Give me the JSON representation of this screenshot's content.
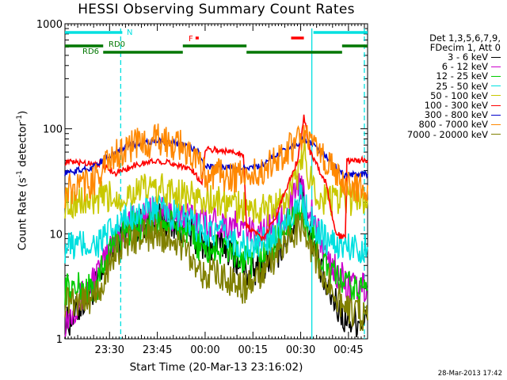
{
  "chart_data": {
    "type": "line",
    "title": "HESSI Observing Summary Count Rates",
    "xlabel": "Start Time (20-Mar-13 23:16:02)",
    "ylabel_main": "Count Rate (s",
    "ylabel_sup1": "-1",
    "ylabel_mid": " detector",
    "ylabel_sup2": "-1",
    "ylabel_end": ")",
    "y_scale": "log",
    "ylim": [
      1,
      1000
    ],
    "y_ticks": [
      {
        "value": 1,
        "label": "1"
      },
      {
        "value": 10,
        "label": "10"
      },
      {
        "value": 100,
        "label": "100"
      },
      {
        "value": 1000,
        "label": "1000"
      }
    ],
    "x_unit": "minutes after 23:16:02",
    "xlim": [
      0,
      95
    ],
    "x_ticks": [
      {
        "value": 14,
        "label": "23:30"
      },
      {
        "value": 29,
        "label": "23:45"
      },
      {
        "value": 44,
        "label": "00:00"
      },
      {
        "value": 59,
        "label": "00:15"
      },
      {
        "value": 74,
        "label": "00:30"
      },
      {
        "value": 89,
        "label": "00:45"
      }
    ],
    "legend": {
      "header": [
        "Det 1,3,5,6,7,9,",
        "FDecim 1, Att 0"
      ],
      "placement": "right"
    },
    "series": [
      {
        "name": "3 - 6 keV",
        "color": "#000000",
        "points": [
          [
            0,
            1.3
          ],
          [
            12,
            4
          ],
          [
            16,
            8
          ],
          [
            22,
            12
          ],
          [
            29,
            14
          ],
          [
            36,
            12
          ],
          [
            40,
            10
          ],
          [
            44,
            7
          ],
          [
            50,
            8
          ],
          [
            58,
            4
          ],
          [
            66,
            6
          ],
          [
            72,
            12
          ],
          [
            74,
            28
          ],
          [
            76,
            14
          ],
          [
            79,
            6
          ],
          [
            82,
            3
          ],
          [
            88,
            1.5
          ],
          [
            95,
            1.5
          ]
        ]
      },
      {
        "name": "6 - 12 keV",
        "color": "#cc00cc",
        "points": [
          [
            0,
            1.5
          ],
          [
            12,
            5
          ],
          [
            15,
            9
          ],
          [
            22,
            14
          ],
          [
            29,
            16
          ],
          [
            36,
            14
          ],
          [
            42,
            14
          ],
          [
            44,
            13
          ],
          [
            50,
            13
          ],
          [
            58,
            10
          ],
          [
            62,
            11
          ],
          [
            68,
            14
          ],
          [
            72,
            22
          ],
          [
            74,
            30
          ],
          [
            76,
            20
          ],
          [
            79,
            11
          ],
          [
            82,
            6
          ],
          [
            86,
            4
          ],
          [
            90,
            3
          ],
          [
            95,
            3
          ]
        ]
      },
      {
        "name": "12 - 25 keV",
        "color": "#00cc00",
        "points": [
          [
            0,
            3
          ],
          [
            10,
            3
          ],
          [
            12,
            5
          ],
          [
            16,
            9
          ],
          [
            22,
            12
          ],
          [
            29,
            13
          ],
          [
            36,
            11
          ],
          [
            40,
            9
          ],
          [
            44,
            7
          ],
          [
            52,
            7
          ],
          [
            58,
            5
          ],
          [
            64,
            7
          ],
          [
            70,
            12
          ],
          [
            74,
            18
          ],
          [
            76,
            12
          ],
          [
            80,
            6
          ],
          [
            84,
            4
          ],
          [
            90,
            3
          ],
          [
            95,
            3
          ]
        ]
      },
      {
        "name": "25 - 50 keV",
        "color": "#00e0e0",
        "points": [
          [
            0,
            7.5
          ],
          [
            10,
            8
          ],
          [
            14,
            10
          ],
          [
            22,
            16
          ],
          [
            29,
            17
          ],
          [
            36,
            14
          ],
          [
            40,
            12
          ],
          [
            44,
            11
          ],
          [
            52,
            9
          ],
          [
            58,
            7
          ],
          [
            64,
            9
          ],
          [
            70,
            14
          ],
          [
            74,
            22
          ],
          [
            76,
            16
          ],
          [
            80,
            10
          ],
          [
            84,
            8
          ],
          [
            88,
            7.5
          ],
          [
            95,
            7.5
          ]
        ]
      },
      {
        "name": "50 - 100 keV",
        "color": "#c8c800",
        "points": [
          [
            0,
            20
          ],
          [
            11,
            20
          ],
          [
            11,
            22
          ],
          [
            17,
            22
          ],
          [
            22,
            26
          ],
          [
            29,
            27
          ],
          [
            36,
            24
          ],
          [
            40,
            22
          ],
          [
            44,
            21
          ],
          [
            52,
            19
          ],
          [
            58,
            17
          ],
          [
            64,
            17
          ],
          [
            70,
            22
          ],
          [
            74,
            40
          ],
          [
            75,
            75
          ],
          [
            76,
            40
          ],
          [
            80,
            22
          ],
          [
            84,
            21
          ],
          [
            88,
            21
          ],
          [
            95,
            21
          ]
        ]
      },
      {
        "name": "100 - 300 keV",
        "color": "#ff0000",
        "points": [
          [
            0,
            48
          ],
          [
            11,
            47
          ],
          [
            16,
            38
          ],
          [
            22,
            45
          ],
          [
            29,
            50
          ],
          [
            36,
            45
          ],
          [
            40,
            40
          ],
          [
            43,
            30
          ],
          [
            44,
            65
          ],
          [
            56,
            58
          ],
          [
            57,
            12
          ],
          [
            62,
            9
          ],
          [
            66,
            14
          ],
          [
            70,
            30
          ],
          [
            73,
            50
          ],
          [
            75,
            130
          ],
          [
            77,
            60
          ],
          [
            82,
            30
          ],
          [
            85,
            10
          ],
          [
            88,
            9
          ],
          [
            88.5,
            50
          ],
          [
            95,
            50
          ]
        ]
      },
      {
        "name": "300 - 800 keV",
        "color": "#0000cc",
        "points": [
          [
            0,
            38
          ],
          [
            8,
            42
          ],
          [
            14,
            55
          ],
          [
            20,
            70
          ],
          [
            29,
            78
          ],
          [
            36,
            72
          ],
          [
            40,
            65
          ],
          [
            42,
            60
          ],
          [
            44,
            44
          ],
          [
            56,
            42
          ],
          [
            58,
            42
          ],
          [
            62,
            45
          ],
          [
            66,
            55
          ],
          [
            72,
            70
          ],
          [
            75,
            78
          ],
          [
            78,
            70
          ],
          [
            82,
            55
          ],
          [
            86,
            40
          ],
          [
            88,
            36
          ],
          [
            95,
            37
          ]
        ]
      },
      {
        "name": "800 - 7000 keV",
        "color": "#ff8800",
        "points": [
          [
            0,
            25
          ],
          [
            8,
            30
          ],
          [
            14,
            50
          ],
          [
            20,
            68
          ],
          [
            29,
            78
          ],
          [
            36,
            70
          ],
          [
            40,
            55
          ],
          [
            43,
            40
          ],
          [
            44,
            37
          ],
          [
            56,
            35
          ],
          [
            58,
            34
          ],
          [
            62,
            40
          ],
          [
            66,
            52
          ],
          [
            72,
            70
          ],
          [
            75,
            80
          ],
          [
            78,
            70
          ],
          [
            82,
            50
          ],
          [
            86,
            35
          ],
          [
            88,
            29
          ],
          [
            95,
            29
          ]
        ]
      },
      {
        "name": "7000 - 20000 keV",
        "color": "#808000",
        "points": [
          [
            0,
            2.3
          ],
          [
            10,
            2.5
          ],
          [
            12,
            3.5
          ],
          [
            16,
            7
          ],
          [
            22,
            9
          ],
          [
            29,
            10
          ],
          [
            36,
            8
          ],
          [
            40,
            6
          ],
          [
            44,
            4
          ],
          [
            50,
            4
          ],
          [
            56,
            3
          ],
          [
            62,
            4
          ],
          [
            66,
            6
          ],
          [
            70,
            9
          ],
          [
            74,
            12
          ],
          [
            76,
            9
          ],
          [
            80,
            5
          ],
          [
            84,
            3
          ],
          [
            88,
            2
          ],
          [
            95,
            1.5
          ]
        ]
      }
    ],
    "vertical_lines": [
      {
        "x": 17.5,
        "color": "#00e0e0",
        "style": "dashed"
      },
      {
        "x": 77.5,
        "color": "#00e0e0",
        "style": "solid"
      },
      {
        "x": 94,
        "color": "#00e0e0",
        "style": "dashed"
      }
    ],
    "status_bars": [
      {
        "label": "N",
        "color": "#00e0e0",
        "segments": [
          [
            0,
            18
          ],
          [
            78,
            95
          ]
        ]
      },
      {
        "label": "F",
        "color": "#ff0000",
        "segments": [
          [
            41,
            42
          ],
          [
            71,
            75
          ]
        ]
      },
      {
        "label": "RD0",
        "color": "#007700",
        "segments": [
          [
            0,
            12
          ],
          [
            37,
            57
          ],
          [
            87,
            95
          ]
        ]
      },
      {
        "label": "RD6",
        "color": "#007700",
        "segments": [
          [
            12,
            37
          ],
          [
            57,
            87
          ]
        ]
      }
    ],
    "grid": false
  },
  "footer": {
    "date": "28-Mar-2013 17:42"
  }
}
